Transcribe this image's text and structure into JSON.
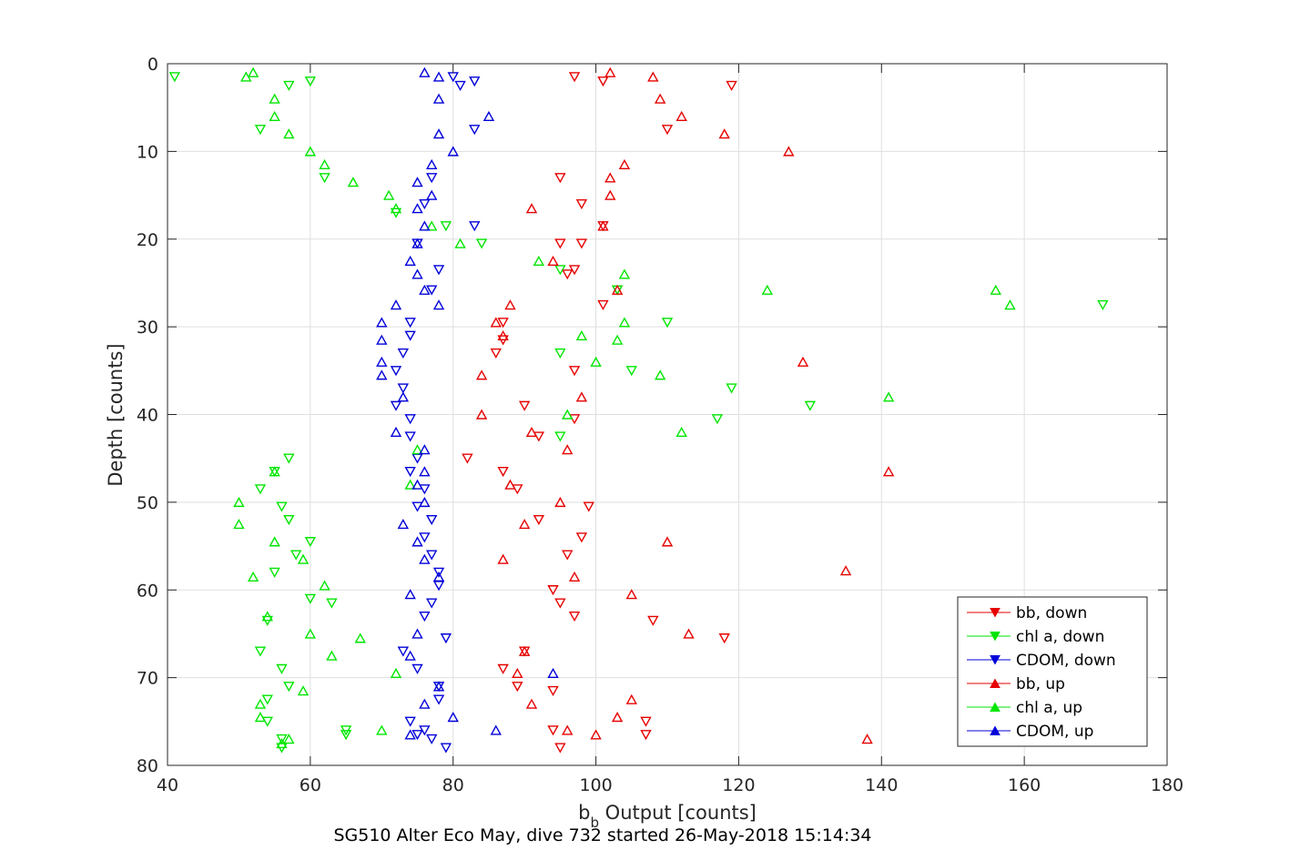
{
  "chart_data": {
    "type": "scatter",
    "title": "",
    "caption": "SG510 Alter Eco May, dive 732 started 26-May-2018 15:14:34",
    "xlabel_main": "b",
    "xlabel_sub": "b",
    "xlabel_rest": " Output [counts]",
    "ylabel": "Depth [counts]",
    "xlim": [
      40,
      180
    ],
    "ylim": [
      0,
      80
    ],
    "y_reversed": true,
    "grid": true,
    "legend_position": "bottom-right",
    "x_ticks": [
      "40",
      "60",
      "80",
      "100",
      "120",
      "140",
      "160",
      "180"
    ],
    "y_ticks": [
      "0",
      "10",
      "20",
      "30",
      "40",
      "50",
      "60",
      "70",
      "80"
    ],
    "colors": {
      "red": "#e60000",
      "green": "#00e600",
      "blue": "#0000d9",
      "axis": "#262626",
      "grid": "#dfdfdf"
    },
    "series": [
      {
        "name": "bb, down",
        "color": "#e60000",
        "marker": "triangle-down",
        "points": [
          [
            97,
            1.5
          ],
          [
            101,
            2
          ],
          [
            110,
            7.5
          ],
          [
            119,
            2.5
          ],
          [
            95,
            13
          ],
          [
            98,
            16
          ],
          [
            101,
            18.5
          ],
          [
            95,
            20.5
          ],
          [
            98,
            20.5
          ],
          [
            97,
            23.5
          ],
          [
            96,
            24
          ],
          [
            103,
            25.8
          ],
          [
            101,
            27.5
          ],
          [
            87,
            29.5
          ],
          [
            86,
            33
          ],
          [
            87,
            31.5
          ],
          [
            97,
            35
          ],
          [
            90,
            39
          ],
          [
            97,
            40.5
          ],
          [
            92,
            42.5
          ],
          [
            82,
            45
          ],
          [
            87,
            46.5
          ],
          [
            89,
            48.5
          ],
          [
            99,
            50.5
          ],
          [
            92,
            52
          ],
          [
            98,
            54
          ],
          [
            96,
            56
          ],
          [
            94,
            60
          ],
          [
            95,
            61.5
          ],
          [
            97,
            63
          ],
          [
            108,
            63.5
          ],
          [
            118,
            65.5
          ],
          [
            90,
            67
          ],
          [
            87,
            69
          ],
          [
            89,
            71
          ],
          [
            94,
            71.5
          ],
          [
            107,
            75
          ],
          [
            94,
            76
          ],
          [
            107,
            76.5
          ],
          [
            95,
            78
          ]
        ]
      },
      {
        "name": "chl a, down",
        "color": "#00e600",
        "marker": "triangle-down",
        "points": [
          [
            41,
            1.5
          ],
          [
            57,
            2.5
          ],
          [
            60,
            2
          ],
          [
            53,
            7.5
          ],
          [
            62,
            13
          ],
          [
            72,
            17
          ],
          [
            79,
            18.5
          ],
          [
            84,
            20.5
          ],
          [
            95,
            23.5
          ],
          [
            103,
            25.8
          ],
          [
            171,
            27.5
          ],
          [
            110,
            29.5
          ],
          [
            95,
            33
          ],
          [
            105,
            35
          ],
          [
            119,
            37
          ],
          [
            130,
            39
          ],
          [
            117,
            40.5
          ],
          [
            95,
            42.5
          ],
          [
            57,
            45
          ],
          [
            55,
            46.5
          ],
          [
            53,
            48.5
          ],
          [
            56,
            50.5
          ],
          [
            57,
            52
          ],
          [
            60,
            54.5
          ],
          [
            58,
            56
          ],
          [
            55,
            58
          ],
          [
            60,
            61
          ],
          [
            63,
            61.5
          ],
          [
            54,
            63.5
          ],
          [
            53,
            67
          ],
          [
            56,
            69
          ],
          [
            57,
            71
          ],
          [
            54,
            72.5
          ],
          [
            54,
            75
          ],
          [
            65,
            76
          ],
          [
            65,
            76.5
          ],
          [
            56,
            77
          ],
          [
            56,
            78
          ]
        ]
      },
      {
        "name": "CDOM, down",
        "color": "#0000d9",
        "marker": "triangle-down",
        "points": [
          [
            80,
            1.5
          ],
          [
            83,
            2
          ],
          [
            81,
            2.5
          ],
          [
            83,
            7.5
          ],
          [
            77,
            13
          ],
          [
            76,
            16
          ],
          [
            83,
            18.5
          ],
          [
            75,
            20.5
          ],
          [
            78,
            23.5
          ],
          [
            77,
            25.8
          ],
          [
            74,
            29.5
          ],
          [
            74,
            31
          ],
          [
            73,
            33
          ],
          [
            72,
            35
          ],
          [
            73,
            37
          ],
          [
            72,
            39
          ],
          [
            74,
            40.5
          ],
          [
            74,
            42.5
          ],
          [
            75,
            45
          ],
          [
            74,
            46.5
          ],
          [
            76,
            48.5
          ],
          [
            75,
            50.5
          ],
          [
            77,
            52
          ],
          [
            76,
            54
          ],
          [
            77,
            56
          ],
          [
            78,
            58
          ],
          [
            78,
            59.5
          ],
          [
            77,
            61.5
          ],
          [
            76,
            63
          ],
          [
            79,
            65.5
          ],
          [
            73,
            67
          ],
          [
            75,
            69
          ],
          [
            78,
            71
          ],
          [
            78,
            72.5
          ],
          [
            74,
            75
          ],
          [
            76,
            76
          ],
          [
            75,
            76.5
          ],
          [
            77,
            77
          ],
          [
            79,
            78
          ]
        ]
      },
      {
        "name": "bb, up",
        "color": "#e60000",
        "marker": "triangle-up",
        "points": [
          [
            102,
            1
          ],
          [
            108,
            1.5
          ],
          [
            109,
            4
          ],
          [
            112,
            6
          ],
          [
            118,
            8
          ],
          [
            127,
            10
          ],
          [
            104,
            11.5
          ],
          [
            102,
            13
          ],
          [
            102,
            15
          ],
          [
            91,
            16.5
          ],
          [
            101,
            18.5
          ],
          [
            94,
            22.5
          ],
          [
            103,
            25.8
          ],
          [
            88,
            27.5
          ],
          [
            86,
            29.5
          ],
          [
            87,
            31
          ],
          [
            129,
            34
          ],
          [
            84,
            35.5
          ],
          [
            98,
            38
          ],
          [
            84,
            40
          ],
          [
            91,
            42
          ],
          [
            96,
            44
          ],
          [
            141,
            46.5
          ],
          [
            88,
            48
          ],
          [
            95,
            50
          ],
          [
            90,
            52.5
          ],
          [
            110,
            54.5
          ],
          [
            87,
            56.5
          ],
          [
            135,
            57.8
          ],
          [
            97,
            58.5
          ],
          [
            105,
            60.5
          ],
          [
            113,
            65
          ],
          [
            90,
            67
          ],
          [
            89,
            69.5
          ],
          [
            91,
            73
          ],
          [
            105,
            72.5
          ],
          [
            103,
            74.5
          ],
          [
            96,
            76
          ],
          [
            100,
            76.5
          ],
          [
            138,
            77
          ]
        ]
      },
      {
        "name": "chl a, up",
        "color": "#00e600",
        "marker": "triangle-up",
        "points": [
          [
            51,
            1.5
          ],
          [
            52,
            1
          ],
          [
            55,
            4
          ],
          [
            55,
            6
          ],
          [
            57,
            8
          ],
          [
            60,
            10
          ],
          [
            62,
            11.5
          ],
          [
            66,
            13.5
          ],
          [
            71,
            15
          ],
          [
            72,
            16.5
          ],
          [
            77,
            18.5
          ],
          [
            81,
            20.5
          ],
          [
            92,
            22.5
          ],
          [
            104,
            24
          ],
          [
            124,
            25.8
          ],
          [
            156,
            25.8
          ],
          [
            158,
            27.5
          ],
          [
            104,
            29.5
          ],
          [
            98,
            31
          ],
          [
            103,
            31.5
          ],
          [
            100,
            34
          ],
          [
            109,
            35.5
          ],
          [
            141,
            38
          ],
          [
            96,
            40
          ],
          [
            112,
            42
          ],
          [
            75,
            44
          ],
          [
            55,
            46.5
          ],
          [
            74,
            48
          ],
          [
            50,
            50
          ],
          [
            50,
            52.5
          ],
          [
            55,
            54.5
          ],
          [
            59,
            56.5
          ],
          [
            52,
            58.5
          ],
          [
            62,
            59.5
          ],
          [
            54,
            63
          ],
          [
            60,
            65
          ],
          [
            67,
            65.5
          ],
          [
            63,
            67.5
          ],
          [
            72,
            69.5
          ],
          [
            59,
            71.5
          ],
          [
            53,
            73
          ],
          [
            53,
            74.5
          ],
          [
            70,
            76
          ],
          [
            57,
            77
          ],
          [
            56,
            77.5
          ]
        ]
      },
      {
        "name": "CDOM, up",
        "color": "#0000d9",
        "marker": "triangle-up",
        "points": [
          [
            76,
            1
          ],
          [
            78,
            1.5
          ],
          [
            78,
            4
          ],
          [
            85,
            6
          ],
          [
            78,
            8
          ],
          [
            80,
            10
          ],
          [
            77,
            11.5
          ],
          [
            75,
            13.5
          ],
          [
            77,
            15
          ],
          [
            75,
            16.5
          ],
          [
            76,
            18.5
          ],
          [
            75,
            20.5
          ],
          [
            74,
            22.5
          ],
          [
            75,
            24
          ],
          [
            76,
            25.8
          ],
          [
            78,
            27.5
          ],
          [
            72,
            27.5
          ],
          [
            70,
            29.5
          ],
          [
            70,
            31.5
          ],
          [
            70,
            34
          ],
          [
            70,
            35.5
          ],
          [
            73,
            38
          ],
          [
            72,
            42
          ],
          [
            76,
            44
          ],
          [
            76,
            46.5
          ],
          [
            75,
            48
          ],
          [
            76,
            50
          ],
          [
            73,
            52.5
          ],
          [
            75,
            54.5
          ],
          [
            76,
            56.5
          ],
          [
            78,
            58.5
          ],
          [
            74,
            60.5
          ],
          [
            75,
            65
          ],
          [
            74,
            67.5
          ],
          [
            94,
            69.5
          ],
          [
            78,
            71
          ],
          [
            76,
            73
          ],
          [
            80,
            74.5
          ],
          [
            86,
            76
          ],
          [
            74,
            76.5
          ]
        ]
      }
    ]
  }
}
